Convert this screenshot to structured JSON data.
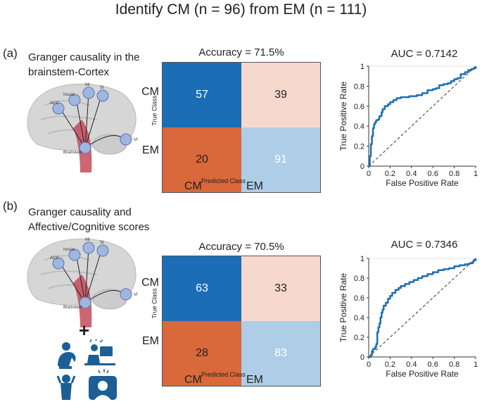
{
  "title": "Identify CM (n = 96) from EM (n = 111)",
  "colors": {
    "cm_tp": "#1b6eb5",
    "cm_fn": "#f6d9cc",
    "em_fp": "#d9683a",
    "em_tn": "#aecde6",
    "roc": "#1b6eb5"
  },
  "panels": [
    {
      "label": "(a)",
      "desc_line1": "Granger causality in the",
      "desc_line2": "brainstem-Cortex",
      "brain_labels": {
        "mi": "MI",
        "si": "SI",
        "insula": "Insula",
        "acc": "ACC",
        "vi": "VI",
        "brainstem": "Brainstem"
      }
    },
    {
      "label": "(b)",
      "desc_line1": "Granger causality and",
      "desc_line2": "Affective/Cognitive scores",
      "brain_labels": {
        "mi": "MI",
        "si": "SI",
        "insula": "Insula",
        "acc": "ACC",
        "vi": "VI",
        "brainstem": "Brainstem"
      },
      "plus": "+",
      "icons": [
        "stressed-person-icon",
        "frustrated-desk-worker-icon",
        "anxious-person-icon",
        "brain-stress-monitor-icon"
      ]
    }
  ],
  "chart_data": [
    {
      "type": "heatmap",
      "title": "Accuracy = 71.5%",
      "rows": [
        "CM",
        "EM"
      ],
      "cols": [
        "CM",
        "EM"
      ],
      "ylabel": "True Class",
      "xlabel": "Predicted Class",
      "values": [
        [
          57,
          39
        ],
        [
          20,
          91
        ]
      ],
      "values_text": [
        [
          "57",
          "39"
        ],
        [
          "20",
          "91"
        ]
      ]
    },
    {
      "type": "line",
      "title": "AUC = 0.7142",
      "xlabel": "False Positive Rate",
      "ylabel": "True Positive Rate",
      "xlim": [
        0,
        1
      ],
      "ylim": [
        0,
        1
      ],
      "ticks": [
        "0",
        "0.2",
        "0.4",
        "0.6",
        "0.8",
        "1"
      ],
      "series": [
        {
          "name": "ROC",
          "x": [
            0,
            0.01,
            0.01,
            0.02,
            0.02,
            0.03,
            0.03,
            0.04,
            0.05,
            0.06,
            0.07,
            0.09,
            0.1,
            0.12,
            0.13,
            0.15,
            0.18,
            0.2,
            0.23,
            0.26,
            0.3,
            0.35,
            0.38,
            0.42,
            0.45,
            0.5,
            0.55,
            0.6,
            0.63,
            0.66,
            0.7,
            0.74,
            0.77,
            0.8,
            0.83,
            0.86,
            0.9,
            0.93,
            0.96,
            0.98,
            1.0
          ],
          "y": [
            0,
            0.03,
            0.1,
            0.12,
            0.22,
            0.24,
            0.3,
            0.38,
            0.42,
            0.44,
            0.46,
            0.47,
            0.5,
            0.54,
            0.57,
            0.6,
            0.62,
            0.64,
            0.66,
            0.68,
            0.69,
            0.69,
            0.7,
            0.7,
            0.71,
            0.73,
            0.76,
            0.77,
            0.78,
            0.81,
            0.82,
            0.83,
            0.85,
            0.87,
            0.88,
            0.92,
            0.94,
            0.96,
            0.97,
            0.98,
            1.0
          ]
        }
      ]
    },
    {
      "type": "heatmap",
      "title": "Accuracy = 70.5%",
      "rows": [
        "CM",
        "EM"
      ],
      "cols": [
        "CM",
        "EM"
      ],
      "ylabel": "True Class",
      "xlabel": "Predicted Class",
      "values": [
        [
          63,
          33
        ],
        [
          28,
          83
        ]
      ],
      "values_text": [
        [
          "63",
          "33"
        ],
        [
          "28",
          "83"
        ]
      ]
    },
    {
      "type": "line",
      "title": "AUC = 0.7346",
      "xlabel": "False Positive Rate",
      "ylabel": "True Positive Rate",
      "xlim": [
        0,
        1
      ],
      "ylim": [
        0,
        1
      ],
      "ticks": [
        "0",
        "0.2",
        "0.4",
        "0.6",
        "0.8",
        "1"
      ],
      "series": [
        {
          "name": "ROC",
          "x": [
            0,
            0.02,
            0.03,
            0.04,
            0.06,
            0.07,
            0.08,
            0.08,
            0.09,
            0.1,
            0.11,
            0.12,
            0.13,
            0.14,
            0.16,
            0.18,
            0.2,
            0.22,
            0.25,
            0.28,
            0.3,
            0.34,
            0.38,
            0.42,
            0.46,
            0.5,
            0.55,
            0.6,
            0.65,
            0.7,
            0.75,
            0.8,
            0.85,
            0.9,
            0.94,
            0.97,
            0.98,
            1.0
          ],
          "y": [
            0,
            0.02,
            0.06,
            0.08,
            0.1,
            0.13,
            0.2,
            0.25,
            0.3,
            0.34,
            0.4,
            0.45,
            0.48,
            0.52,
            0.55,
            0.59,
            0.62,
            0.65,
            0.68,
            0.7,
            0.72,
            0.74,
            0.76,
            0.78,
            0.8,
            0.82,
            0.84,
            0.86,
            0.88,
            0.89,
            0.9,
            0.92,
            0.93,
            0.94,
            0.95,
            0.96,
            0.98,
            1.0
          ]
        }
      ]
    }
  ]
}
